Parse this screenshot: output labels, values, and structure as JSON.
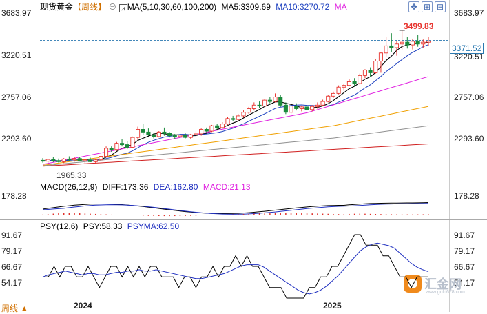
{
  "header": {
    "instrument": "现货黄金",
    "period_bracket": "【周线】",
    "ma_label": "MA(5,10,30,60,100,200)",
    "ma5_label": "MA5:3309.69",
    "ma10_label": "MA10:3270.72",
    "ma_tail": "MA"
  },
  "macd_header": {
    "label": "MACD(26,12,9)",
    "diff": "DIFF:173.36",
    "dea": "DEA:162.80",
    "macd": "MACD:21.13"
  },
  "psy_header": {
    "label": "PSY(12,6)",
    "psy": "PSY:58.33",
    "psyma": "PSYMA:62.50"
  },
  "price_axis": {
    "ticks": [
      "3683.97",
      "3220.51",
      "2757.06",
      "2293.60"
    ],
    "high_label": "3499.83",
    "low_label": "1965.33",
    "current_label": "3371.52"
  },
  "macd_axis": {
    "ticks": [
      "178.28"
    ]
  },
  "psy_axis": {
    "ticks": [
      "91.67",
      "79.17",
      "66.67",
      "54.17"
    ]
  },
  "time_axis": {
    "labels": [
      "2024",
      "2025"
    ]
  },
  "footer": {
    "period_tag": "周线 ▲"
  },
  "logo": {
    "text": "汇金网",
    "url_text": "www.gold678.com"
  },
  "colors": {
    "up": "#e8352f",
    "down": "#1a8a3c",
    "ma5": "#000000",
    "ma10": "#1c3fbf",
    "ma30": "#e020e0",
    "ma60": "#f0a000",
    "ma100": "#909090",
    "ma200": "#d02020",
    "dif": "#000000",
    "dea": "#2030c0",
    "macd_bar": "#e0302a",
    "psy": "#000000",
    "psyma": "#2030c0",
    "current_line": "#2a78b0"
  },
  "chart_data": {
    "type": "candlestick",
    "interval": "weekly",
    "price_range": [
      1965.33,
      3683.97
    ],
    "high": 3499.83,
    "low": 1965.33,
    "last": 3371.52,
    "candles": [
      [
        2045,
        2070,
        2020,
        2035
      ],
      [
        2035,
        2060,
        2010,
        2055
      ],
      [
        2055,
        2085,
        2025,
        2040
      ],
      [
        2040,
        2065,
        2020,
        2030
      ],
      [
        2030,
        2070,
        2015,
        2060
      ],
      [
        2060,
        2090,
        2040,
        2050
      ],
      [
        2050,
        2080,
        2030,
        2065
      ],
      [
        2065,
        2085,
        2035,
        2040
      ],
      [
        2040,
        2060,
        2010,
        2050
      ],
      [
        2050,
        2075,
        2025,
        2030
      ],
      [
        2030,
        2060,
        2010,
        2050
      ],
      [
        2050,
        2095,
        2040,
        2090
      ],
      [
        2090,
        2200,
        2080,
        2180
      ],
      [
        2180,
        2200,
        2140,
        2165
      ],
      [
        2165,
        2250,
        2150,
        2235
      ],
      [
        2235,
        2280,
        2200,
        2220
      ],
      [
        2220,
        2260,
        2170,
        2190
      ],
      [
        2190,
        2310,
        2180,
        2300
      ],
      [
        2300,
        2420,
        2270,
        2390
      ],
      [
        2390,
        2450,
        2330,
        2360
      ],
      [
        2360,
        2400,
        2320,
        2330
      ],
      [
        2330,
        2350,
        2290,
        2310
      ],
      [
        2310,
        2370,
        2300,
        2360
      ],
      [
        2360,
        2410,
        2320,
        2345
      ],
      [
        2345,
        2360,
        2300,
        2320
      ],
      [
        2320,
        2340,
        2280,
        2310
      ],
      [
        2310,
        2335,
        2290,
        2325
      ],
      [
        2325,
        2345,
        2290,
        2300
      ],
      [
        2300,
        2340,
        2280,
        2330
      ],
      [
        2330,
        2370,
        2310,
        2340
      ],
      [
        2340,
        2400,
        2320,
        2390
      ],
      [
        2390,
        2410,
        2350,
        2370
      ],
      [
        2370,
        2440,
        2360,
        2430
      ],
      [
        2430,
        2450,
        2390,
        2410
      ],
      [
        2410,
        2470,
        2400,
        2450
      ],
      [
        2450,
        2530,
        2440,
        2510
      ],
      [
        2510,
        2540,
        2480,
        2500
      ],
      [
        2500,
        2560,
        2490,
        2540
      ],
      [
        2540,
        2600,
        2520,
        2580
      ],
      [
        2580,
        2640,
        2560,
        2620
      ],
      [
        2620,
        2690,
        2600,
        2660
      ],
      [
        2660,
        2700,
        2630,
        2650
      ],
      [
        2650,
        2730,
        2640,
        2715
      ],
      [
        2715,
        2750,
        2680,
        2700
      ],
      [
        2700,
        2790,
        2690,
        2750
      ],
      [
        2750,
        2770,
        2640,
        2660
      ],
      [
        2660,
        2690,
        2560,
        2580
      ],
      [
        2580,
        2670,
        2560,
        2650
      ],
      [
        2650,
        2680,
        2600,
        2620
      ],
      [
        2620,
        2650,
        2590,
        2640
      ],
      [
        2640,
        2660,
        2600,
        2610
      ],
      [
        2610,
        2660,
        2590,
        2645
      ],
      [
        2645,
        2690,
        2620,
        2660
      ],
      [
        2660,
        2720,
        2650,
        2700
      ],
      [
        2700,
        2770,
        2690,
        2760
      ],
      [
        2760,
        2810,
        2740,
        2790
      ],
      [
        2790,
        2880,
        2780,
        2860
      ],
      [
        2860,
        2900,
        2820,
        2880
      ],
      [
        2880,
        2950,
        2870,
        2920
      ],
      [
        2920,
        2960,
        2870,
        2900
      ],
      [
        2900,
        3010,
        2890,
        2990
      ],
      [
        2990,
        3060,
        2960,
        3050
      ],
      [
        3050,
        3080,
        2980,
        3020
      ],
      [
        3020,
        3170,
        3010,
        3150
      ],
      [
        3150,
        3250,
        3020,
        3240
      ],
      [
        3240,
        3420,
        3200,
        3320
      ],
      [
        3320,
        3460,
        3250,
        3300
      ],
      [
        3300,
        3370,
        3210,
        3340
      ],
      [
        3340,
        3500,
        3280,
        3360
      ],
      [
        3360,
        3420,
        3290,
        3330
      ],
      [
        3330,
        3400,
        3280,
        3370
      ],
      [
        3370,
        3440,
        3310,
        3340
      ],
      [
        3340,
        3390,
        3300,
        3360
      ],
      [
        3360,
        3420,
        3320,
        3372
      ]
    ],
    "macd": {
      "diff": 173.36,
      "dea": 162.8,
      "macd": 21.13,
      "axis_tick": 178.28
    },
    "psy": {
      "current": 58.33,
      "psyma": 62.5,
      "ticks": [
        91.67,
        79.17,
        66.67,
        54.17
      ],
      "psy_values": [
        58.33,
        58.33,
        66.67,
        58.33,
        66.67,
        66.67,
        58.33,
        58.33,
        66.67,
        58.33,
        50,
        58.33,
        66.67,
        66.67,
        58.33,
        66.67,
        58.33,
        66.67,
        58.33,
        66.67,
        66.67,
        58.33,
        58.33,
        58.33,
        50,
        58.33,
        58.33,
        50,
        58.33,
        58.33,
        66.67,
        58.33,
        66.67,
        66.67,
        75,
        66.67,
        75,
        66.67,
        66.67,
        58.33,
        50,
        50,
        50,
        41.67,
        41.67,
        41.67,
        41.67,
        50,
        50,
        58.33,
        58.33,
        66.67,
        66.67,
        75,
        83.33,
        91.67,
        91.67,
        83.33,
        83.33,
        83.33,
        75,
        75,
        66.67,
        58.33,
        58.33,
        50,
        58.33,
        58.33,
        58.33
      ],
      "psyma_values": [
        58.33,
        60,
        61,
        62,
        63,
        62,
        61,
        60,
        61,
        61,
        60,
        60,
        61,
        62,
        62,
        63,
        63,
        64,
        63,
        63,
        64,
        63,
        62,
        61,
        60,
        59,
        58,
        57,
        57,
        58,
        59,
        60,
        61,
        63,
        65,
        67,
        68,
        68,
        68,
        66,
        63,
        60,
        57,
        54,
        51,
        48,
        46,
        45,
        46,
        48,
        51,
        55,
        59,
        64,
        69,
        74,
        79,
        82,
        84,
        85,
        84,
        83,
        81,
        77,
        73,
        69,
        66,
        64,
        62.5
      ]
    },
    "time_labels": [
      "2024",
      "2025"
    ]
  }
}
